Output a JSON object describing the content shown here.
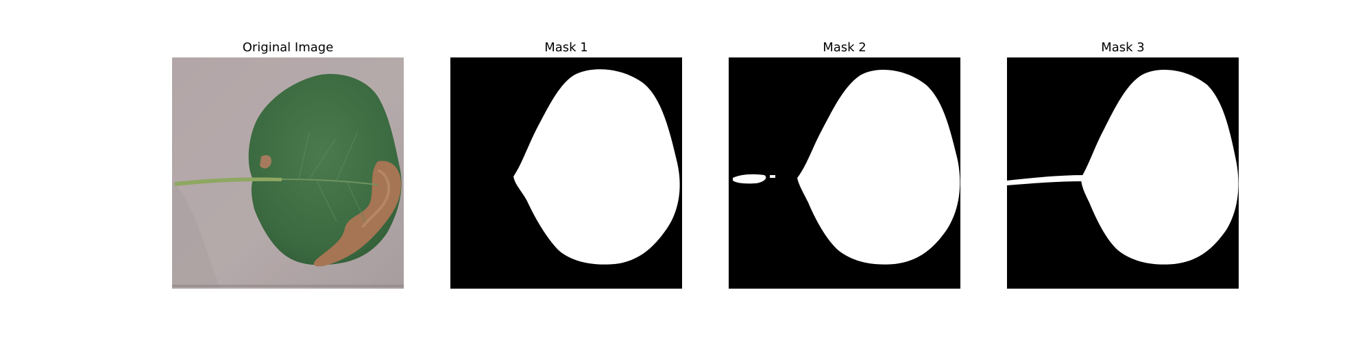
{
  "figure": {
    "panels": [
      {
        "title": "Original Image",
        "image_icon": "leaf-photo"
      },
      {
        "title": "Mask 1",
        "image_icon": "binary-mask"
      },
      {
        "title": "Mask 2",
        "image_icon": "binary-mask"
      },
      {
        "title": "Mask 3",
        "image_icon": "binary-mask"
      }
    ]
  },
  "colors": {
    "background": "#ffffff",
    "mask_foreground": "#ffffff",
    "mask_background": "#000000",
    "leaf_green": "#3f7044",
    "leaf_lesion": "#a47655",
    "surface": "#b8acae"
  }
}
